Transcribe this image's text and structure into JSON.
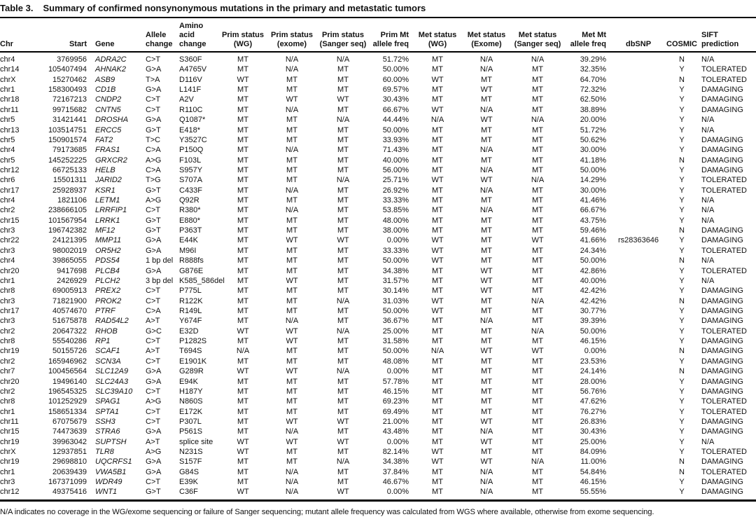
{
  "table": {
    "label": "Table 3.",
    "title": "Summary of confirmed nonsynonymous mutations in the primary and metastatic tumors",
    "columns": [
      {
        "key": "chr",
        "label": "Chr"
      },
      {
        "key": "start",
        "label": "Start"
      },
      {
        "key": "gene",
        "label": "Gene"
      },
      {
        "key": "allele",
        "label": "Allele\nchange"
      },
      {
        "key": "aa",
        "label": "Amino acid\nchange"
      },
      {
        "key": "prim_wg",
        "label": "Prim status\n(WG)"
      },
      {
        "key": "prim_exome",
        "label": "Prim status\n(exome)"
      },
      {
        "key": "prim_sanger",
        "label": "Prim status\n(Sanger seq)"
      },
      {
        "key": "prim_freq",
        "label": "Prim Mt\nallele freq"
      },
      {
        "key": "met_wg",
        "label": "Met status\n(WG)"
      },
      {
        "key": "met_exome",
        "label": "Met status\n(Exome)"
      },
      {
        "key": "met_sanger",
        "label": "Met status\n(Sanger seq)"
      },
      {
        "key": "met_freq",
        "label": "Met Mt\nallele freq"
      },
      {
        "key": "dbsnp",
        "label": "dbSNP"
      },
      {
        "key": "cosmic",
        "label": "COSMIC"
      },
      {
        "key": "sift",
        "label": "SIFT\nprediction"
      }
    ],
    "rows": [
      [
        "chr4",
        "3769956",
        "ADRA2C",
        "C>T",
        "S360F",
        "MT",
        "N/A",
        "N/A",
        "51.72%",
        "MT",
        "N/A",
        "N/A",
        "39.29%",
        "",
        "N",
        "N/A"
      ],
      [
        "chr14",
        "105407494",
        "AHNAK2",
        "G>A",
        "A4765V",
        "MT",
        "N/A",
        "MT",
        "50.00%",
        "MT",
        "N/A",
        "MT",
        "32.35%",
        "",
        "Y",
        "TOLERATED"
      ],
      [
        "chrX",
        "15270462",
        "ASB9",
        "T>A",
        "D116V",
        "WT",
        "MT",
        "MT",
        "60.00%",
        "WT",
        "MT",
        "MT",
        "64.70%",
        "",
        "N",
        "TOLERATED"
      ],
      [
        "chr1",
        "158300493",
        "CD1B",
        "G>A",
        "L141F",
        "MT",
        "MT",
        "MT",
        "69.57%",
        "MT",
        "WT",
        "MT",
        "72.32%",
        "",
        "Y",
        "DAMAGING"
      ],
      [
        "chr18",
        "72167213",
        "CNDP2",
        "C>T",
        "A2V",
        "MT",
        "WT",
        "WT",
        "30.43%",
        "MT",
        "MT",
        "MT",
        "62.50%",
        "",
        "Y",
        "DAMAGING"
      ],
      [
        "chr11",
        "99715682",
        "CNTN5",
        "C>T",
        "R110C",
        "MT",
        "N/A",
        "MT",
        "66.67%",
        "WT",
        "N/A",
        "MT",
        "38.89%",
        "",
        "Y",
        "DAMAGING"
      ],
      [
        "chr5",
        "31421441",
        "DROSHA",
        "G>A",
        "Q1087*",
        "MT",
        "MT",
        "N/A",
        "44.44%",
        "N/A",
        "WT",
        "N/A",
        "20.00%",
        "",
        "Y",
        "N/A"
      ],
      [
        "chr13",
        "103514751",
        "ERCC5",
        "G>T",
        "E418*",
        "MT",
        "MT",
        "MT",
        "50.00%",
        "MT",
        "MT",
        "MT",
        "51.72%",
        "",
        "Y",
        "N/A"
      ],
      [
        "chr5",
        "150901574",
        "FAT2",
        "T>C",
        "Y3527C",
        "MT",
        "MT",
        "MT",
        "33.93%",
        "MT",
        "MT",
        "MT",
        "50.62%",
        "",
        "Y",
        "DAMAGING"
      ],
      [
        "chr4",
        "79173685",
        "FRAS1",
        "C>A",
        "P150Q",
        "MT",
        "N/A",
        "MT",
        "71.43%",
        "MT",
        "N/A",
        "MT",
        "30.00%",
        "",
        "Y",
        "DAMAGING"
      ],
      [
        "chr5",
        "145252225",
        "GRXCR2",
        "A>G",
        "F103L",
        "MT",
        "MT",
        "MT",
        "40.00%",
        "MT",
        "MT",
        "MT",
        "41.18%",
        "",
        "N",
        "DAMAGING"
      ],
      [
        "chr12",
        "66725133",
        "HELB",
        "C>A",
        "S957Y",
        "MT",
        "MT",
        "MT",
        "56.00%",
        "MT",
        "N/A",
        "MT",
        "50.00%",
        "",
        "Y",
        "DAMAGING"
      ],
      [
        "chr6",
        "15501311",
        "JARID2",
        "T>G",
        "S707A",
        "MT",
        "MT",
        "N/A",
        "25.71%",
        "WT",
        "WT",
        "N/A",
        "14.29%",
        "",
        "Y",
        "TOLERATED"
      ],
      [
        "chr17",
        "25928937",
        "KSR1",
        "G>T",
        "C433F",
        "MT",
        "N/A",
        "MT",
        "26.92%",
        "MT",
        "N/A",
        "MT",
        "30.00%",
        "",
        "Y",
        "TOLERATED"
      ],
      [
        "chr4",
        "1821106",
        "LETM1",
        "A>G",
        "Q92R",
        "MT",
        "MT",
        "MT",
        "33.33%",
        "MT",
        "MT",
        "MT",
        "41.46%",
        "",
        "Y",
        "N/A"
      ],
      [
        "chr2",
        "238666105",
        "LRRFIP1",
        "C>T",
        "R380*",
        "MT",
        "N/A",
        "MT",
        "53.85%",
        "MT",
        "N/A",
        "MT",
        "66.67%",
        "",
        "Y",
        "N/A"
      ],
      [
        "chr15",
        "101567954",
        "LRRK1",
        "G>T",
        "E880*",
        "MT",
        "MT",
        "MT",
        "48.00%",
        "MT",
        "MT",
        "MT",
        "43.75%",
        "",
        "Y",
        "N/A"
      ],
      [
        "chr3",
        "196742382",
        "MF12",
        "G>T",
        "P363T",
        "MT",
        "MT",
        "MT",
        "38.00%",
        "MT",
        "MT",
        "MT",
        "59.46%",
        "",
        "N",
        "DAMAGING"
      ],
      [
        "chr22",
        "24121395",
        "MMP11",
        "G>A",
        "E44K",
        "MT",
        "WT",
        "WT",
        "0.00%",
        "WT",
        "MT",
        "WT",
        "41.66%",
        "rs28363646",
        "Y",
        "DAMAGING"
      ],
      [
        "chr3",
        "98002019",
        "OR5H2",
        "G>A",
        "M96I",
        "MT",
        "MT",
        "MT",
        "33.33%",
        "WT",
        "MT",
        "MT",
        "24.34%",
        "",
        "Y",
        "TOLERATED"
      ],
      [
        "chr4",
        "39865055",
        "PDS54",
        "1 bp del",
        "R888fs",
        "MT",
        "MT",
        "MT",
        "50.00%",
        "WT",
        "MT",
        "MT",
        "50.00%",
        "",
        "N",
        "N/A"
      ],
      [
        "chr20",
        "9417698",
        "PLCB4",
        "G>A",
        "G876E",
        "MT",
        "MT",
        "MT",
        "34.38%",
        "MT",
        "WT",
        "MT",
        "42.86%",
        "",
        "Y",
        "TOLERATED"
      ],
      [
        "chr1",
        "2426929",
        "PLCH2",
        "3 bp del",
        "K585_586del",
        "MT",
        "WT",
        "MT",
        "31.57%",
        "MT",
        "WT",
        "MT",
        "40.00%",
        "",
        "Y",
        "N/A"
      ],
      [
        "chr8",
        "69005913",
        "PREX2",
        "C>T",
        "P775L",
        "MT",
        "MT",
        "MT",
        "30.14%",
        "MT",
        "WT",
        "MT",
        "42.42%",
        "",
        "Y",
        "DAMAGING"
      ],
      [
        "chr3",
        "71821900",
        "PROK2",
        "C>T",
        "R122K",
        "MT",
        "MT",
        "N/A",
        "31.03%",
        "WT",
        "MT",
        "N/A",
        "42.42%",
        "",
        "N",
        "DAMAGING"
      ],
      [
        "chr17",
        "40574670",
        "PTRF",
        "C>A",
        "R149L",
        "MT",
        "MT",
        "MT",
        "50.00%",
        "WT",
        "MT",
        "MT",
        "30.77%",
        "",
        "Y",
        "DAMAGING"
      ],
      [
        "chr3",
        "51675878",
        "RAD54L2",
        "A>T",
        "Y674F",
        "MT",
        "N/A",
        "MT",
        "36.67%",
        "MT",
        "N/A",
        "MT",
        "39.39%",
        "",
        "Y",
        "DAMAGING"
      ],
      [
        "chr2",
        "20647322",
        "RHOB",
        "G>C",
        "E32D",
        "WT",
        "WT",
        "N/A",
        "25.00%",
        "MT",
        "MT",
        "N/A",
        "50.00%",
        "",
        "Y",
        "TOLERATED"
      ],
      [
        "chr8",
        "55540286",
        "RP1",
        "C>T",
        "P1282S",
        "MT",
        "WT",
        "MT",
        "31.58%",
        "MT",
        "MT",
        "MT",
        "46.15%",
        "",
        "Y",
        "DAMAGING"
      ],
      [
        "chr19",
        "50155726",
        "SCAF1",
        "A>T",
        "T694S",
        "N/A",
        "MT",
        "MT",
        "50.00%",
        "N/A",
        "WT",
        "WT",
        "0.00%",
        "",
        "N",
        "DAMAGING"
      ],
      [
        "chr2",
        "165946962",
        "SCN3A",
        "C>T",
        "E1901K",
        "MT",
        "MT",
        "MT",
        "48.08%",
        "MT",
        "MT",
        "MT",
        "23.53%",
        "",
        "Y",
        "DAMAGING"
      ],
      [
        "chr7",
        "100456564",
        "SLC12A9",
        "G>A",
        "G289R",
        "WT",
        "WT",
        "N/A",
        "0.00%",
        "MT",
        "MT",
        "MT",
        "24.14%",
        "",
        "N",
        "DAMAGING"
      ],
      [
        "chr20",
        "19496140",
        "SLC24A3",
        "G>A",
        "E94K",
        "MT",
        "MT",
        "MT",
        "57.78%",
        "MT",
        "MT",
        "MT",
        "28.00%",
        "",
        "Y",
        "DAMAGING"
      ],
      [
        "chr2",
        "196545325",
        "SLC39A10",
        "C>T",
        "H187Y",
        "MT",
        "MT",
        "MT",
        "46.15%",
        "MT",
        "MT",
        "MT",
        "56.76%",
        "",
        "Y",
        "DAMAGING"
      ],
      [
        "chr8",
        "101252929",
        "SPAG1",
        "A>G",
        "N860S",
        "MT",
        "MT",
        "MT",
        "69.23%",
        "MT",
        "MT",
        "MT",
        "47.62%",
        "",
        "Y",
        "TOLERATED"
      ],
      [
        "chr1",
        "158651334",
        "SPTA1",
        "C>T",
        "E172K",
        "MT",
        "MT",
        "MT",
        "69.49%",
        "MT",
        "MT",
        "MT",
        "76.27%",
        "",
        "Y",
        "TOLERATED"
      ],
      [
        "chr11",
        "67075679",
        "SSH3",
        "C>T",
        "P307L",
        "MT",
        "WT",
        "WT",
        "21.00%",
        "MT",
        "WT",
        "MT",
        "26.83%",
        "",
        "Y",
        "DAMAGING"
      ],
      [
        "chr15",
        "74473639",
        "STRA6",
        "G>A",
        "P561S",
        "MT",
        "N/A",
        "MT",
        "43.48%",
        "MT",
        "N/A",
        "MT",
        "30.43%",
        "",
        "Y",
        "DAMAGING"
      ],
      [
        "chr19",
        "39963042",
        "SUPTSH",
        "A>T",
        "splice site",
        "WT",
        "WT",
        "WT",
        "0.00%",
        "MT",
        "WT",
        "MT",
        "25.00%",
        "",
        "Y",
        "N/A"
      ],
      [
        "chrX",
        "12937851",
        "TLR8",
        "A>G",
        "N231S",
        "WT",
        "MT",
        "MT",
        "82.14%",
        "WT",
        "MT",
        "MT",
        "84.09%",
        "",
        "Y",
        "TOLERATED"
      ],
      [
        "chr19",
        "29698810",
        "UQCRFS1",
        "G>A",
        "S157F",
        "MT",
        "MT",
        "N/A",
        "34.38%",
        "WT",
        "WT",
        "N/A",
        "11.00%",
        "",
        "N",
        "DAMAGING"
      ],
      [
        "chr1",
        "20639439",
        "VWA5B1",
        "G>A",
        "G84S",
        "MT",
        "N/A",
        "MT",
        "37.84%",
        "MT",
        "N/A",
        "MT",
        "54.84%",
        "",
        "N",
        "TOLERATED"
      ],
      [
        "chr3",
        "167371099",
        "WDR49",
        "C>T",
        "E39K",
        "MT",
        "N/A",
        "MT",
        "46.67%",
        "MT",
        "N/A",
        "MT",
        "46.15%",
        "",
        "Y",
        "DAMAGING"
      ],
      [
        "chr12",
        "49375416",
        "WNT1",
        "G>T",
        "C36F",
        "WT",
        "N/A",
        "WT",
        "0.00%",
        "MT",
        "N/A",
        "MT",
        "55.55%",
        "",
        "Y",
        "DAMAGING"
      ]
    ],
    "footnote": "N/A indicates no coverage in the WG/exome sequencing or failure of Sanger sequencing; mutant allele frequency was calculated from WGS where available, otherwise from exome sequencing."
  }
}
